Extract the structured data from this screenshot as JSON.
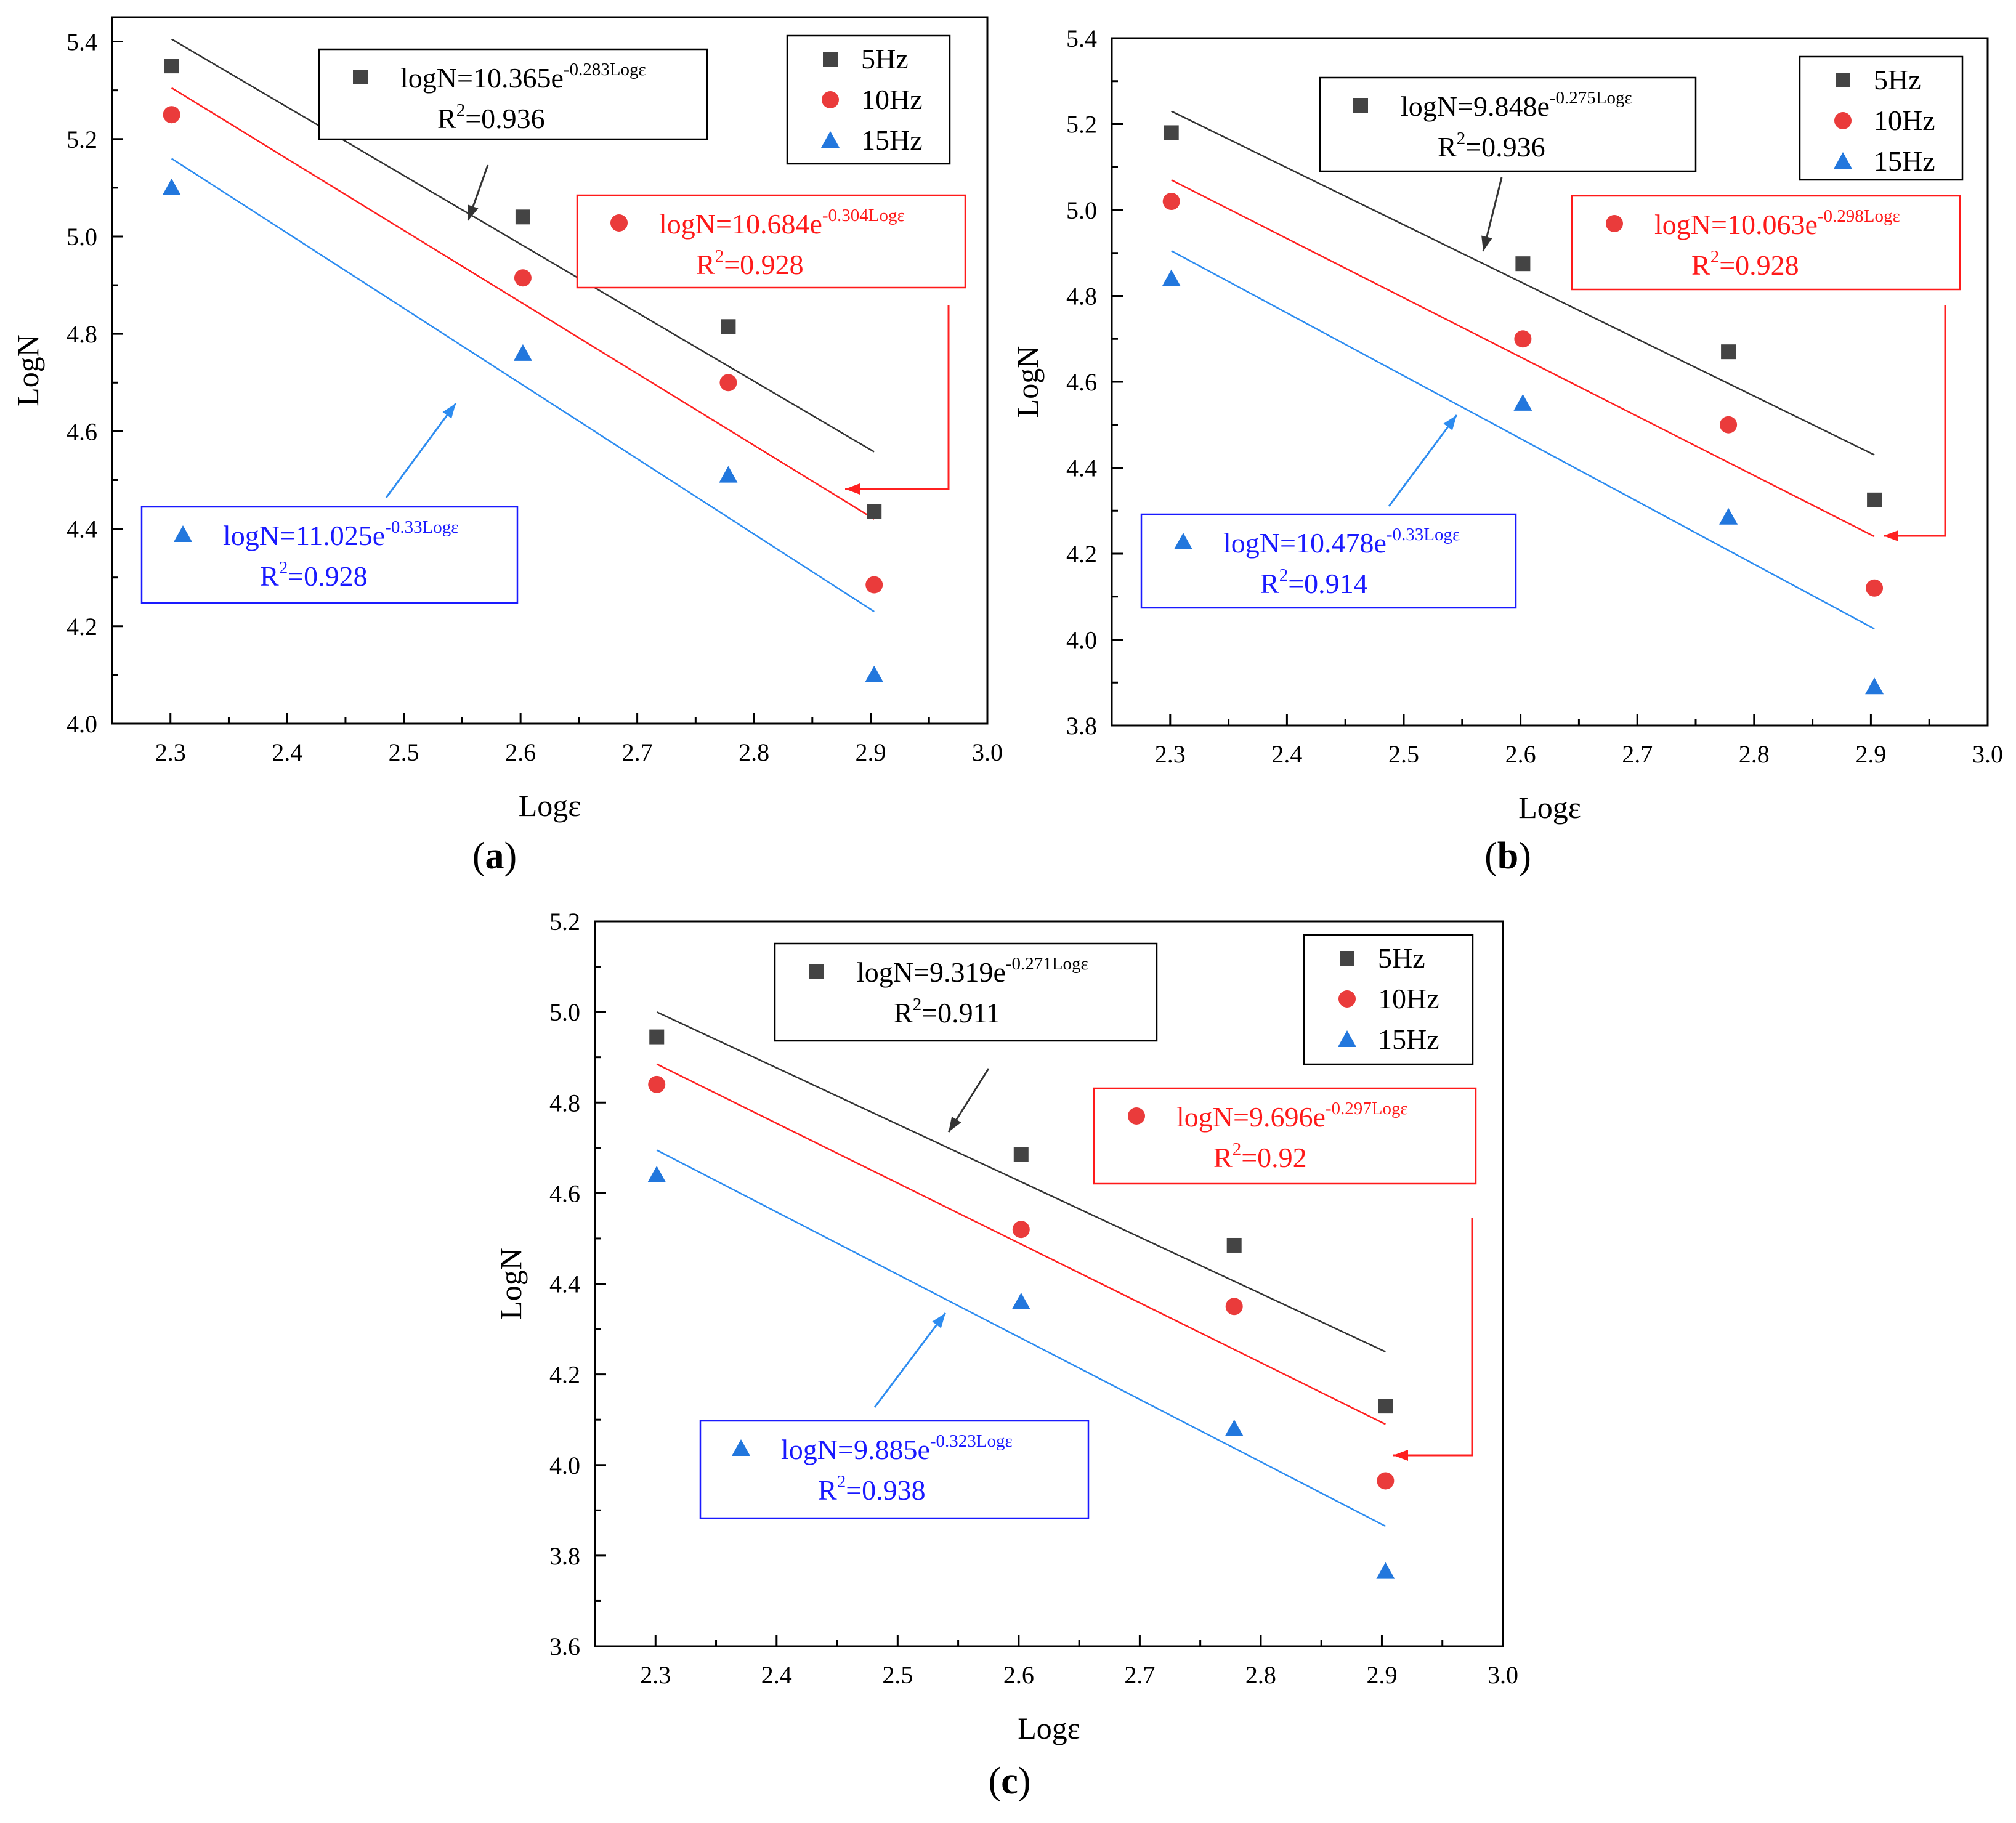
{
  "colors": {
    "s5": "#444444",
    "s10": "#ea3b3b",
    "s15": "#2277dd",
    "line5": "#333333",
    "line10": "#ff2020",
    "line15": "#2d8cf0",
    "text5": "#000000",
    "text10": "#ff1a1a",
    "text15": "#1a1aff",
    "axis": "#000000"
  },
  "chart_data": [
    {
      "type": "scatter",
      "panel_label": "(a)",
      "xlabel": "Logε",
      "ylabel": "LogN",
      "xlim": [
        2.25,
        3.0
      ],
      "ylim": [
        4.0,
        5.45
      ],
      "xticks": [
        "2.3",
        "2.4",
        "2.5",
        "2.6",
        "2.7",
        "2.8",
        "2.9",
        "3.0"
      ],
      "yticks": [
        "4.0",
        "4.2",
        "4.4",
        "4.6",
        "4.8",
        "5.0",
        "5.2",
        "5.4"
      ],
      "legend": [
        "5Hz",
        "10Hz",
        "15Hz"
      ],
      "x": [
        2.301,
        2.602,
        2.778,
        2.903
      ],
      "series": [
        {
          "name": "5Hz",
          "values": [
            5.35,
            5.04,
            4.815,
            4.435
          ],
          "fit": [
            [
              2.301,
              5.405
            ],
            [
              2.903,
              4.558
            ]
          ],
          "eq_base": "logN=10.365e",
          "eq_exp": "-0.283Logε",
          "r2": "=0.936"
        },
        {
          "name": "10Hz",
          "values": [
            5.25,
            4.915,
            4.7,
            4.285
          ],
          "fit": [
            [
              2.301,
              5.305
            ],
            [
              2.903,
              4.42
            ]
          ],
          "eq_base": "logN=10.684e",
          "eq_exp": "-0.304Logε",
          "r2": "=0.928"
        },
        {
          "name": "15Hz",
          "values": [
            5.1,
            4.76,
            4.51,
            4.1
          ],
          "fit": [
            [
              2.301,
              5.16
            ],
            [
              2.903,
              4.23
            ]
          ],
          "eq_base": "logN=11.025e",
          "eq_exp": "-0.33Logε",
          "r2": "=0.928"
        }
      ]
    },
    {
      "type": "scatter",
      "panel_label": "(b)",
      "xlabel": "Logε",
      "ylabel": "LogN",
      "xlim": [
        2.25,
        3.0
      ],
      "ylim": [
        3.8,
        5.4
      ],
      "xticks": [
        "2.3",
        "2.4",
        "2.5",
        "2.6",
        "2.7",
        "2.8",
        "2.9",
        "3.0"
      ],
      "yticks": [
        "3.8",
        "4.0",
        "4.2",
        "4.4",
        "4.6",
        "4.8",
        "5.0",
        "5.2",
        "5.4"
      ],
      "legend": [
        "5Hz",
        "10Hz",
        "15Hz"
      ],
      "x": [
        2.301,
        2.602,
        2.778,
        2.903
      ],
      "series": [
        {
          "name": "5Hz",
          "values": [
            5.18,
            4.875,
            4.67,
            4.325
          ],
          "fit": [
            [
              2.301,
              5.23
            ],
            [
              2.903,
              4.43
            ]
          ],
          "eq_base": "logN=9.848e",
          "eq_exp": "-0.275Logε",
          "r2": "=0.936"
        },
        {
          "name": "10Hz",
          "values": [
            5.02,
            4.7,
            4.5,
            4.12
          ],
          "fit": [
            [
              2.301,
              5.07
            ],
            [
              2.903,
              4.24
            ]
          ],
          "eq_base": "logN=10.063e",
          "eq_exp": "-0.298Logε",
          "r2": "=0.928"
        },
        {
          "name": "15Hz",
          "values": [
            4.84,
            4.55,
            4.285,
            3.89
          ],
          "fit": [
            [
              2.301,
              4.905
            ],
            [
              2.903,
              4.025
            ]
          ],
          "eq_base": "logN=10.478e",
          "eq_exp": "-0.33Logε",
          "r2": "=0.914"
        }
      ]
    },
    {
      "type": "scatter",
      "panel_label": "(c)",
      "xlabel": "Logε",
      "ylabel": "LogN",
      "xlim": [
        2.25,
        3.0
      ],
      "ylim": [
        3.6,
        5.2
      ],
      "xticks": [
        "2.3",
        "2.4",
        "2.5",
        "2.6",
        "2.7",
        "2.8",
        "2.9",
        "3.0"
      ],
      "yticks": [
        "3.6",
        "3.8",
        "4.0",
        "4.2",
        "4.4",
        "4.6",
        "4.8",
        "5.0",
        "5.2"
      ],
      "legend": [
        "5Hz",
        "10Hz",
        "15Hz"
      ],
      "x": [
        2.301,
        2.602,
        2.778,
        2.903
      ],
      "series": [
        {
          "name": "5Hz",
          "values": [
            4.945,
            4.685,
            4.485,
            4.13
          ],
          "fit": [
            [
              2.301,
              5.0
            ],
            [
              2.903,
              4.25
            ]
          ],
          "eq_base": "logN=9.319e",
          "eq_exp": "-0.271Logε",
          "r2": "=0.911"
        },
        {
          "name": "10Hz",
          "values": [
            4.84,
            4.52,
            4.35,
            3.965
          ],
          "fit": [
            [
              2.301,
              4.885
            ],
            [
              2.903,
              4.09
            ]
          ],
          "eq_base": "logN=9.696e",
          "eq_exp": "-0.297Logε",
          "r2": "=0.92"
        },
        {
          "name": "15Hz",
          "values": [
            4.64,
            4.36,
            4.08,
            3.765
          ],
          "fit": [
            [
              2.301,
              4.695
            ],
            [
              2.903,
              3.865
            ]
          ],
          "eq_base": "logN=9.885e",
          "eq_exp": "-0.323Logε",
          "r2": "=0.938"
        }
      ]
    }
  ]
}
